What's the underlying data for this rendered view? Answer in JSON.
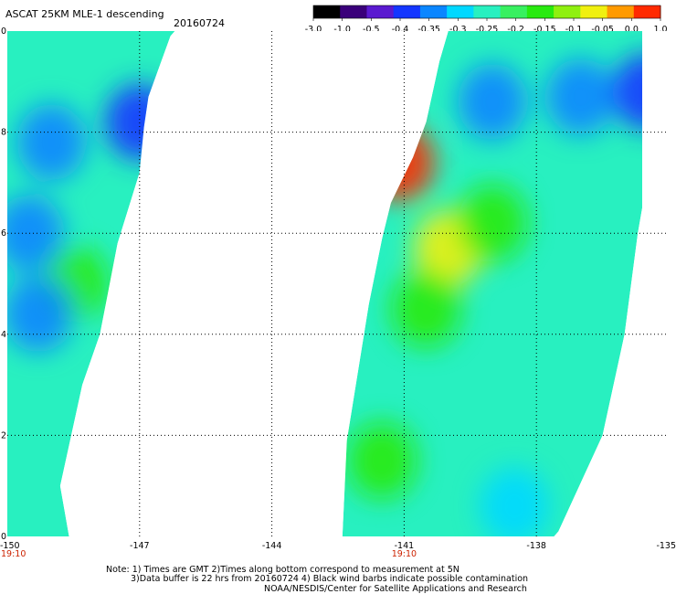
{
  "header": {
    "title": "ASCAT 25KM MLE-1 descending",
    "date": "20160724"
  },
  "colorbar": {
    "ticks": [
      "-3.0",
      "-1.0",
      "-0.5",
      "-0.4",
      "-0.35",
      "-0.3",
      "-0.25",
      "-0.2",
      "-0.15",
      "-0.1",
      "-0.05",
      "0.0",
      "1.0"
    ],
    "colors": [
      "#000000",
      "#3a007a",
      "#5a1ad0",
      "#1436ff",
      "#0a86ff",
      "#00d8ff",
      "#28f0c0",
      "#38f060",
      "#28ea10",
      "#8ff010",
      "#f0f010",
      "#ff9a00",
      "#ff2a00"
    ]
  },
  "notes": {
    "line1": "Note: 1) Times are GMT 2)Times along bottom correspond to measurement at 5N",
    "line2": "3)Data buffer is 22 hrs from 20160724 4) Black wind barbs indicate possible contamination",
    "line3": "NOAA/NESDIS/Center for Satellite Applications and Research"
  },
  "pass_times": [
    {
      "lon": -150,
      "label": "19:10",
      "color": "#cc2200"
    },
    {
      "lon": -141,
      "label": "19:10",
      "color": "#cc2200"
    }
  ],
  "chart_data": {
    "type": "heatmap",
    "title": "ASCAT 25KM MLE-1 descending",
    "xlabel": "",
    "ylabel": "",
    "xlim": [
      -150,
      -135
    ],
    "ylim": [
      0,
      10
    ],
    "grid": true,
    "x_tick_labels": [
      "-150",
      "-147",
      "-144",
      "-141",
      "-138",
      "-135"
    ],
    "y_tick_labels": [
      "0",
      "2",
      "4",
      "6",
      "8",
      "10"
    ],
    "colorscale_ticks": [
      -3.0,
      -1.0,
      -0.5,
      -0.4,
      -0.35,
      -0.3,
      -0.25,
      -0.2,
      -0.15,
      -0.1,
      -0.05,
      0.0,
      1.0
    ],
    "swaths": [
      {
        "name": "",
        "edges": [
          [
            -150,
            0
          ],
          [
            -148.6,
            0
          ],
          [
            -148.8,
            1
          ],
          [
            -148.3,
            3
          ],
          [
            -147.9,
            4
          ],
          [
            -147.5,
            5.8
          ],
          [
            -147.0,
            7.2
          ],
          [
            -146.9,
            8.1
          ],
          [
            -146.8,
            8.7
          ],
          [
            -146.3,
            9.9
          ],
          [
            -146.2,
            10
          ],
          [
            -150,
            10
          ]
        ],
        "dominant_value": -0.3,
        "regions": [
          {
            "name": "",
            "lon": -148.5,
            "lat": 5.0,
            "value": -0.2
          },
          {
            "name": "",
            "lon": -149.0,
            "lat": 7.8,
            "value": -0.4
          },
          {
            "name": "",
            "lon": -149.5,
            "lat": 6.0,
            "value": -0.4
          },
          {
            "name": "",
            "lon": -149.3,
            "lat": 4.4,
            "value": -0.4
          },
          {
            "name": "",
            "lon": -147.0,
            "lat": 8.2,
            "value": -0.45
          }
        ]
      },
      {
        "name": "",
        "edges": [
          [
            -142.4,
            0
          ],
          [
            -140.5,
            0
          ],
          [
            -137.6,
            0
          ],
          [
            -137.5,
            0.1
          ],
          [
            -136.5,
            2.0
          ],
          [
            -136.0,
            4.0
          ],
          [
            -135.7,
            6.0
          ],
          [
            -135.6,
            6.5
          ],
          [
            -135.6,
            10
          ],
          [
            -140.0,
            10
          ],
          [
            -140.2,
            9.4
          ],
          [
            -140.5,
            8.2
          ],
          [
            -140.8,
            7.5
          ],
          [
            -141.3,
            6.6
          ],
          [
            -141.5,
            5.9
          ],
          [
            -141.8,
            4.6
          ],
          [
            -142.3,
            1.9
          ],
          [
            -142.4,
            0
          ]
        ],
        "dominant_value": -0.3,
        "regions": [
          {
            "name": "",
            "lon": -140.0,
            "lat": 5.7,
            "value": -0.1
          },
          {
            "name": "",
            "lon": -140.5,
            "lat": 4.5,
            "value": -0.2
          },
          {
            "name": "",
            "lon": -139.0,
            "lat": 6.2,
            "value": -0.2
          },
          {
            "name": "",
            "lon": -137.0,
            "lat": 8.7,
            "value": -0.4
          },
          {
            "name": "",
            "lon": -135.5,
            "lat": 8.8,
            "value": -0.45
          },
          {
            "name": "",
            "lon": -139.0,
            "lat": 8.6,
            "value": -0.4
          },
          {
            "name": "",
            "lon": -141.1,
            "lat": 7.4,
            "value": 0.0
          },
          {
            "name": "",
            "lon": -141.5,
            "lat": 1.5,
            "value": -0.2
          },
          {
            "name": "",
            "lon": -138.5,
            "lat": 0.6,
            "value": -0.35
          }
        ]
      }
    ]
  }
}
